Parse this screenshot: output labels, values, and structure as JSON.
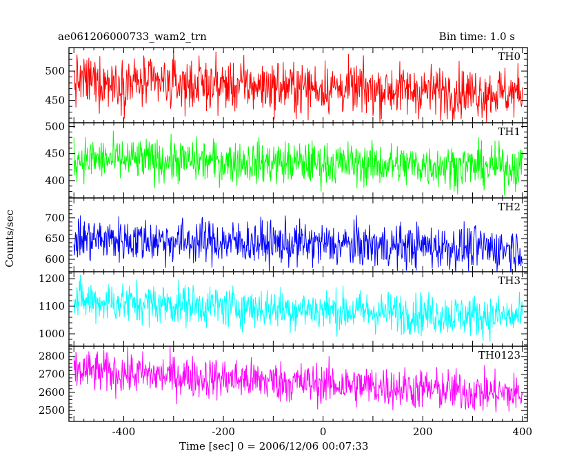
{
  "header": {
    "left_title": "ae061206000733_wam2_trn",
    "right_title": "Bin time: 1.0 s"
  },
  "chart_data": {
    "type": "line",
    "xlabel": "Time [sec] 0 = 2006/12/06 00:07:33",
    "ylabel": "Counts/sec",
    "xlim": [
      -510,
      410
    ],
    "x_ticks": [
      -400,
      -200,
      0,
      200,
      400
    ],
    "x_start": -500,
    "x_end": 400,
    "bin_time": 1.0,
    "grid": false,
    "series": [
      {
        "name": "TH0",
        "color": "#ff0000",
        "ylim": [
          412,
          540
        ],
        "y_ticks": [
          450,
          500
        ],
        "mean_start": 483,
        "mean_end": 462,
        "amplitude": 22
      },
      {
        "name": "TH1",
        "color": "#00ff00",
        "ylim": [
          368,
          507
        ],
        "y_ticks": [
          400,
          450,
          500
        ],
        "mean_start": 440,
        "mean_end": 425,
        "amplitude": 20
      },
      {
        "name": "TH2",
        "color": "#0000ff",
        "ylim": [
          570,
          748
        ],
        "y_ticks": [
          600,
          650,
          700
        ],
        "mean_start": 650,
        "mean_end": 625,
        "amplitude": 27
      },
      {
        "name": "TH3",
        "color": "#00ffff",
        "ylim": [
          955,
          1225
        ],
        "y_ticks": [
          1000,
          1100,
          1200
        ],
        "mean_start": 1120,
        "mean_end": 1060,
        "amplitude": 38
      },
      {
        "name": "TH0123",
        "color": "#ff00ff",
        "ylim": [
          2440,
          2855
        ],
        "y_ticks": [
          2500,
          2600,
          2700,
          2800
        ],
        "mean_start": 2720,
        "mean_end": 2590,
        "amplitude": 58
      }
    ]
  }
}
